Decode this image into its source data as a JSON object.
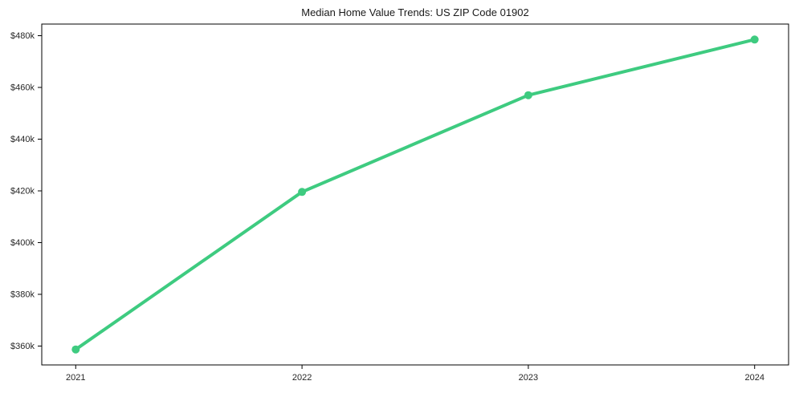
{
  "chart_data": {
    "type": "line",
    "title": "Median Home Value Trends: US ZIP Code 01902",
    "x": [
      2021,
      2022,
      2023,
      2024
    ],
    "x_tick_labels": [
      "2021",
      "2022",
      "2023",
      "2024"
    ],
    "values": [
      358700,
      419600,
      457000,
      478500
    ],
    "xlabel": "",
    "ylabel": "",
    "xlim": [
      2020.85,
      2024.15
    ],
    "ylim": [
      352700,
      484500
    ],
    "yticks": [
      360000,
      380000,
      400000,
      420000,
      440000,
      460000,
      480000
    ],
    "ytick_labels": [
      "$360k",
      "$380k",
      "$400k",
      "$420k",
      "$440k",
      "$460k",
      "$480k"
    ],
    "grid": false,
    "legend": "none",
    "line_color": "#3ecb80",
    "marker": "circle",
    "line_width": 4,
    "marker_radius": 5
  }
}
